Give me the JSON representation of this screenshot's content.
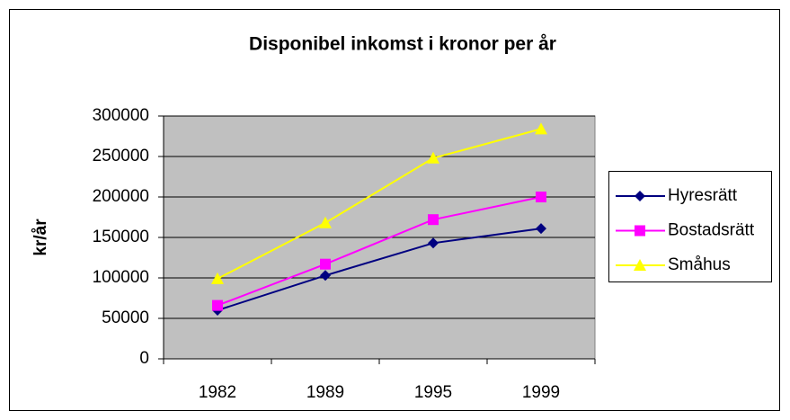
{
  "chart_data": {
    "type": "line",
    "title": "Disponibel inkomst i kronor per år",
    "y_label": "kr/år",
    "categories": [
      "1982",
      "1989",
      "1995",
      "1999"
    ],
    "series": [
      {
        "name": "Hyresrätt",
        "color": "#000080",
        "marker": "diamond",
        "values": [
          60000,
          103000,
          143000,
          161000
        ]
      },
      {
        "name": "Bostadsrätt",
        "color": "#ff00ff",
        "marker": "square",
        "values": [
          66000,
          117000,
          172000,
          200000
        ]
      },
      {
        "name": "Småhus",
        "color": "#ffff00",
        "marker": "triangle",
        "values": [
          99000,
          168000,
          248000,
          284000
        ]
      }
    ],
    "ylim": [
      0,
      300000
    ],
    "yticks": [
      0,
      50000,
      100000,
      150000,
      200000,
      250000,
      300000
    ],
    "grid": true,
    "legend": "right",
    "plot_background": "#c0c0c0"
  }
}
